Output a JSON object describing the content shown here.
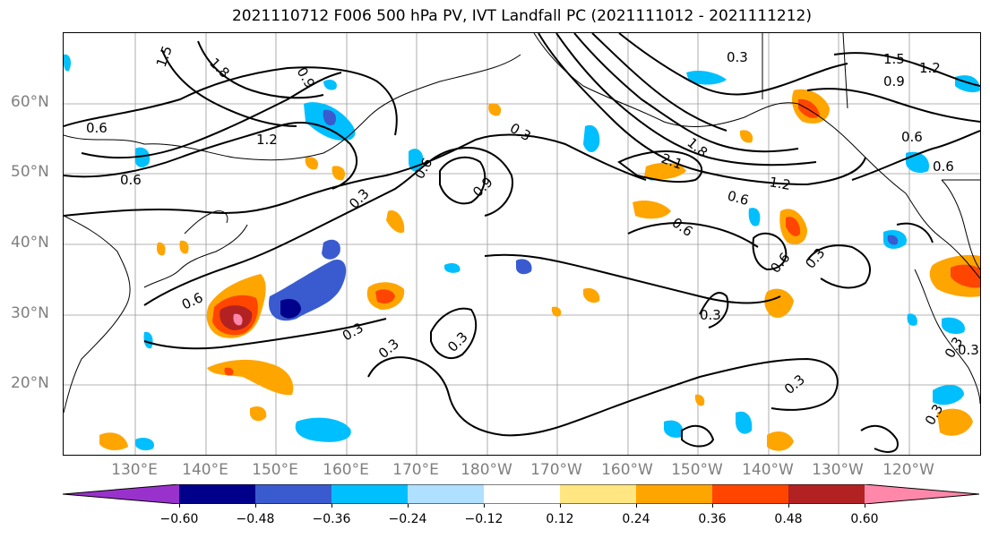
{
  "title": "2021110712 F006 500 hPa PV, IVT Landfall PC (2021111012 - 2021111212)",
  "lat_labels": [
    "60°N",
    "50°N",
    "40°N",
    "30°N",
    "20°N"
  ],
  "lon_labels": [
    "130°E",
    "140°E",
    "150°E",
    "160°E",
    "170°E",
    "180°W",
    "170°W",
    "160°W",
    "150°W",
    "140°W",
    "130°W",
    "120°W"
  ],
  "contour_labels": [
    "1.5",
    "1.8",
    "0.9",
    "1.2",
    "0.6",
    "0.6",
    "0.3",
    "0.6",
    "0.9",
    "0.3",
    "0.6",
    "0.3",
    "0.3",
    "0.3",
    "0.6",
    "0.3",
    "0.3",
    "0.3",
    "1.8",
    "2.1",
    "1.2",
    "0.6",
    "0.6",
    "0.3",
    "0.3",
    "0.6",
    "0.3",
    "1.5",
    "1.2",
    "0.9",
    "0.6",
    "0.3"
  ],
  "colorbar": {
    "ticks": [
      "−0.60",
      "−0.48",
      "−0.36",
      "−0.24",
      "−0.12",
      "0.12",
      "0.24",
      "0.36",
      "0.48",
      "0.60"
    ],
    "colors": [
      "#9932cc",
      "#00008b",
      "#3a5bd0",
      "#00bfff",
      "#b0e0ff",
      "#ffffff",
      "#ffe680",
      "#ffa500",
      "#ff4500",
      "#b22222",
      "#ff88aa"
    ]
  }
}
